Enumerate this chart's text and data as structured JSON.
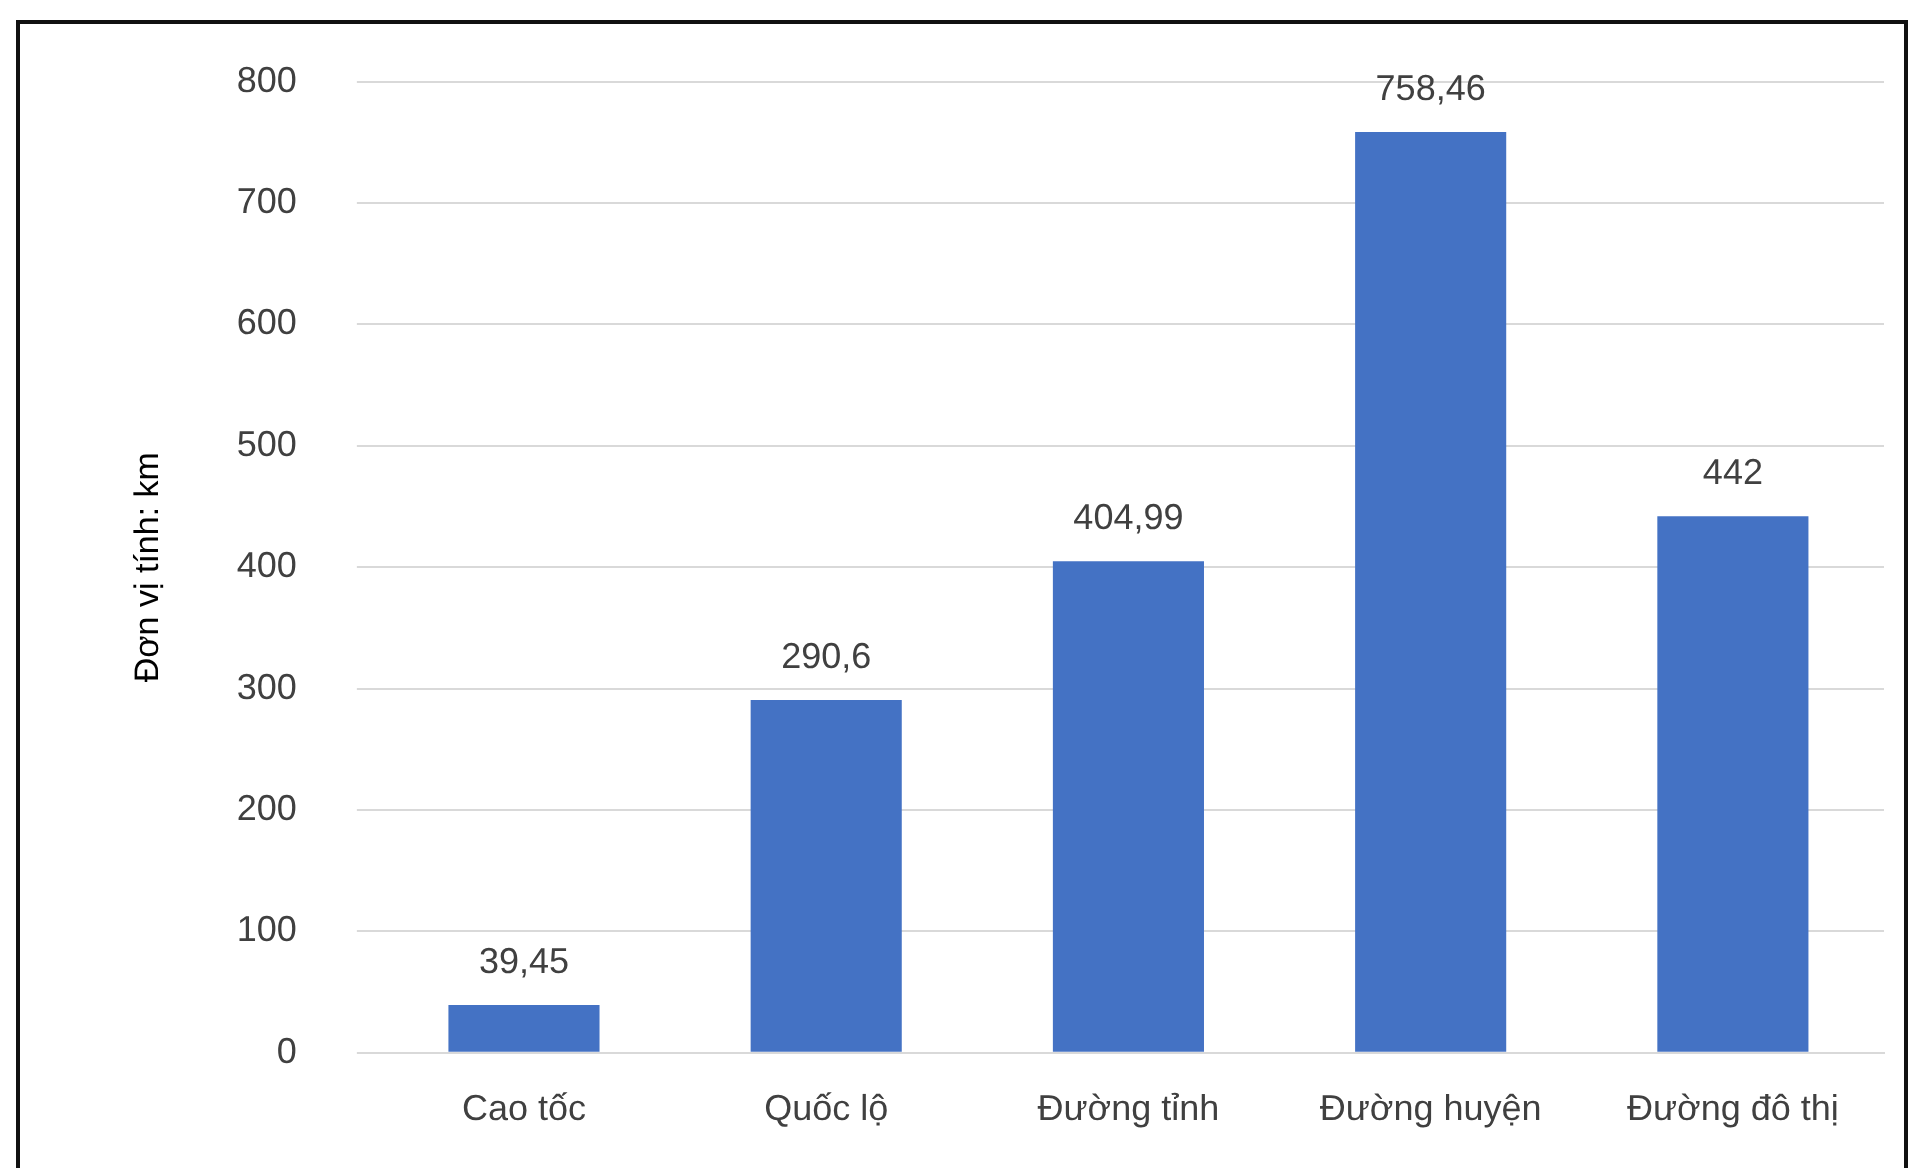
{
  "chart_data": {
    "type": "bar",
    "ylabel": "Đơn vị tính: km",
    "categories": [
      "Cao tốc",
      "Quốc lộ",
      "Đường tỉnh",
      "Đường huyện",
      "Đường đô thị"
    ],
    "values": [
      39.45,
      290.6,
      404.99,
      758.46,
      442
    ],
    "value_labels": [
      "39,45",
      "290,6",
      "404,99",
      "758,46",
      "442"
    ],
    "color": "#4472c4",
    "ylim": [
      0,
      800
    ],
    "yticks": [
      0,
      100,
      200,
      300,
      400,
      500,
      600,
      700,
      800
    ],
    "grid": "y",
    "legend": false
  }
}
